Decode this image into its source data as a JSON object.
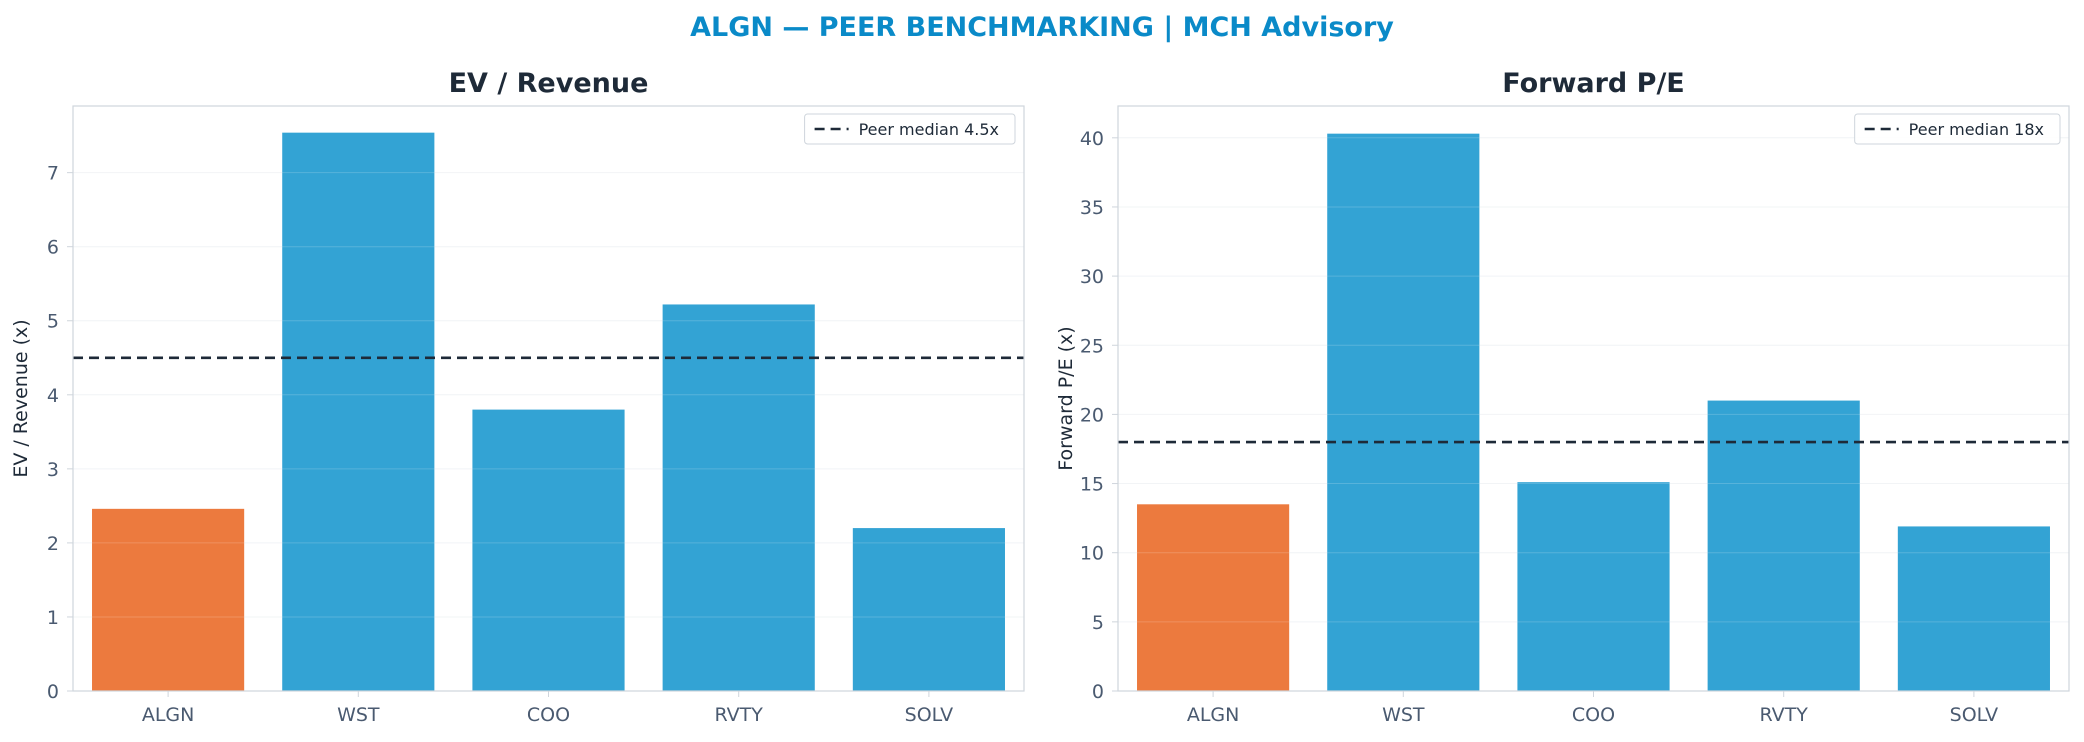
{
  "title": "ALGN — PEER BENCHMARKING | MCH Advisory",
  "colors": {
    "title": "#0a8ac8",
    "highlight_bar": "#ec7a3e",
    "peer_bar": "#33a3d4",
    "median_line": "#1e2a38",
    "grid": "#f0f2f5",
    "frame": "#cfd5dc",
    "tick_text": "#4a5a70"
  },
  "chart_data": [
    {
      "type": "bar",
      "title": "EV / Revenue",
      "xlabel": "",
      "ylabel": "EV / Revenue (x)",
      "categories": [
        "ALGN",
        "WST",
        "COO",
        "RVTY",
        "SOLV"
      ],
      "values": [
        2.46,
        7.54,
        3.8,
        5.22,
        2.2
      ],
      "highlight": "ALGN",
      "ylim": [
        0,
        7.9
      ],
      "yticks": [
        0,
        1,
        2,
        3,
        4,
        5,
        6,
        7
      ],
      "median": 4.5,
      "legend": "Peer median 4.5x",
      "legend_position": "top-right",
      "grid": true
    },
    {
      "type": "bar",
      "title": "Forward P/E",
      "xlabel": "",
      "ylabel": "Forward P/E (x)",
      "categories": [
        "ALGN",
        "WST",
        "COO",
        "RVTY",
        "SOLV"
      ],
      "values": [
        13.5,
        40.3,
        15.1,
        21.0,
        11.9
      ],
      "highlight": "ALGN",
      "ylim": [
        0,
        42.3
      ],
      "yticks": [
        0,
        5,
        10,
        15,
        20,
        25,
        30,
        35,
        40
      ],
      "median": 18,
      "legend": "Peer median 18x",
      "legend_position": "top-right",
      "grid": true
    }
  ]
}
